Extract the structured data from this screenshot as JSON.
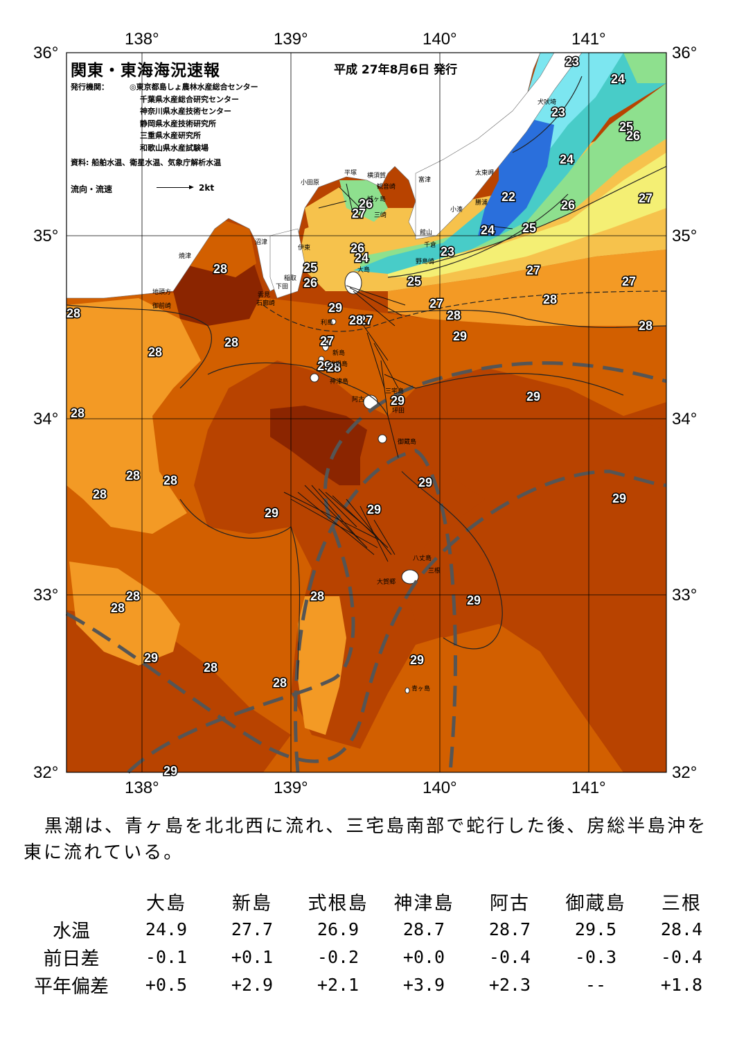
{
  "header": {
    "title": "関東・東海海況速報",
    "date": "平成 27年8月6日 発行",
    "publisher_label": "発行機関：",
    "publishers": [
      "◎東京都島しょ農林水産総合センター",
      "千葉県水産総合研究センター",
      "神奈川県水産技術センター",
      "静岡県水産技術研究所",
      "三重県水産研究所",
      "和歌山県水産試験場"
    ],
    "sources": "資料: 船舶水温、衛星水温、気象庁解析水温",
    "flow_label": "流向・流速",
    "flow_scale": "2kt"
  },
  "axes": {
    "lon_labels": [
      "138°",
      "139°",
      "140°",
      "141°"
    ],
    "lat_labels": [
      "36°",
      "35°",
      "34°",
      "33°",
      "32°"
    ]
  },
  "colors": {
    "t29_plus": "#8b2500",
    "t29": "#b84300",
    "t28": "#d25f00",
    "t27": "#f39a25",
    "t26": "#f6c24c",
    "t25": "#f4ef74",
    "t24_green": "#8ee08e",
    "t23": "#48ccc8",
    "t23_light": "#7ce6f0",
    "t22": "#2a6fdc",
    "land": "#ffffff",
    "kuroshio_axis": "#555555"
  },
  "isotherm_labels": [
    "23",
    "24",
    "23",
    "25",
    "26",
    "24",
    "22",
    "26",
    "27",
    "26",
    "27",
    "24",
    "25",
    "23",
    "26",
    "24",
    "25",
    "26",
    "27",
    "27",
    "28",
    "25",
    "27",
    "27",
    "29",
    "28",
    "27",
    "28",
    "29",
    "28",
    "28",
    "28",
    "28",
    "29",
    "28",
    "29",
    "28",
    "28",
    "29",
    "28",
    "28",
    "29",
    "28",
    "29",
    "29",
    "28",
    "29",
    "29",
    "28",
    "29",
    "28",
    "29",
    "28",
    "28",
    "29"
  ],
  "place_names": [
    "犬吠埼",
    "太東岬",
    "勝浦",
    "小湊",
    "富津",
    "横須賀",
    "観音崎",
    "平塚",
    "小田原",
    "城ヶ島",
    "三崎",
    "館山",
    "千倉",
    "野島崎",
    "伊東",
    "沼津",
    "焼津",
    "稲取",
    "下田",
    "雲見",
    "石廊崎",
    "地頭方",
    "御前崎",
    "大島",
    "利島",
    "新島",
    "式根島",
    "神津島",
    "三宅島",
    "阿古",
    "坪田",
    "御蔵島",
    "八丈島",
    "三根",
    "大賀郷",
    "青ヶ島"
  ],
  "summary": "黒潮は、青ヶ島を北北西に流れ、三宅島南部で蛇行した後、房総半島沖を東に流れている。",
  "table": {
    "stations": [
      "大島",
      "新島",
      "式根島",
      "神津島",
      "阿古",
      "御蔵島",
      "三根"
    ],
    "rows": [
      {
        "label": "水温",
        "values": [
          "24.9",
          "27.7",
          "26.9",
          "28.7",
          "28.7",
          "29.5",
          "28.4"
        ]
      },
      {
        "label": "前日差",
        "values": [
          "-0.1",
          "+0.1",
          "-0.2",
          "+0.0",
          "-0.4",
          "-0.3",
          "-0.4"
        ]
      },
      {
        "label": "平年偏差",
        "values": [
          "+0.5",
          "+2.9",
          "+2.1",
          "+3.9",
          "+2.3",
          "--",
          "+1.8"
        ]
      }
    ]
  }
}
